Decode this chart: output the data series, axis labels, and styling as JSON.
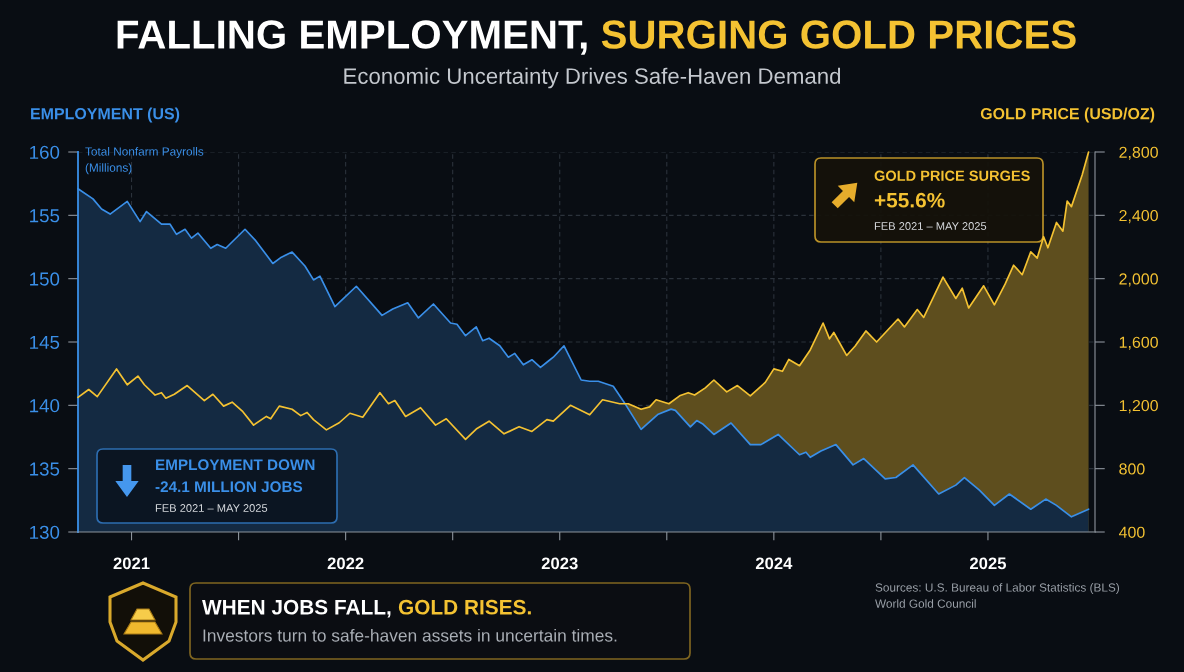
{
  "chart_data": {
    "type": "area",
    "title": "FALLING EMPLOYMENT, SURGING GOLD PRICES",
    "subtitle": "Economic Uncertainty Drives Safe-Haven Demand",
    "ylabel": "EMPLOYMENT (US)",
    "y2label": "GOLD PRICE (USD/OZ)",
    "xlim": [
      2020.75,
      2025.5
    ],
    "xticks": [
      2021,
      {
        "value": 2021.5,
        "label": null
      },
      2022,
      {
        "value": 2022.5,
        "label": null
      },
      2023,
      {
        "value": 2023.5,
        "label": null
      },
      2024,
      {
        "value": 2024.5,
        "label": null
      },
      2025
    ],
    "ylim": [
      130,
      160
    ],
    "yticks": [
      130,
      135,
      140,
      145,
      150,
      155,
      160
    ],
    "y2lim": [
      400,
      2800
    ],
    "y2ticks": [
      400,
      800,
      {
        "value": 1200,
        "label": "1,200"
      },
      {
        "value": 1600,
        "label": "1,600"
      },
      {
        "value": 2000,
        "label": "2,000"
      },
      {
        "value": 2400,
        "label": "2,400"
      },
      {
        "value": 2800,
        "label": "2,800"
      }
    ],
    "grid": true,
    "series": [
      {
        "color": "#3a8fe8",
        "axis": "y",
        "x": [
          2020.75,
          2020.82,
          2020.86,
          2020.9,
          2020.98,
          2021.04,
          2021.07,
          2021.14,
          2021.18,
          2021.21,
          2021.25,
          2021.28,
          2021.31,
          2021.37,
          2021.4,
          2021.44,
          2021.53,
          2021.58,
          2021.66,
          2021.7,
          2021.75,
          2021.81,
          2021.85,
          2021.88,
          2021.95,
          2022.05,
          2022.17,
          2022.22,
          2022.29,
          2022.34,
          2022.41,
          2022.49,
          2022.52,
          2022.56,
          2022.61,
          2022.64,
          2022.67,
          2022.72,
          2022.76,
          2022.79,
          2022.83,
          2022.87,
          2022.91,
          2022.94,
          2022.97,
          2023.02,
          2023.1,
          2023.14,
          2023.18,
          2023.25,
          2023.31,
          2023.38,
          2023.46,
          2023.52,
          2023.54,
          2023.61,
          2023.64,
          2023.67,
          2023.72,
          2023.8,
          2023.89,
          2023.94,
          2024.02,
          2024.12,
          2024.15,
          2024.17,
          2024.22,
          2024.29,
          2024.37,
          2024.42,
          2024.52,
          2024.57,
          2024.65,
          2024.77,
          2024.85,
          2024.89,
          2024.96,
          2025.03,
          2025.1,
          2025.2,
          2025.27,
          2025.32,
          2025.39,
          2025.47
        ],
        "values": [
          157.1,
          156.3,
          155.5,
          155.1,
          156.1,
          154.5,
          155.3,
          154.3,
          154.3,
          153.5,
          153.9,
          153.2,
          153.6,
          152.4,
          152.7,
          152.4,
          153.9,
          153.0,
          151.2,
          151.7,
          152.1,
          151.0,
          149.9,
          150.2,
          147.8,
          149.4,
          147.1,
          147.6,
          148.1,
          146.9,
          148.0,
          146.5,
          146.4,
          145.5,
          146.2,
          145.1,
          145.3,
          144.7,
          143.8,
          144.1,
          143.2,
          143.6,
          143.0,
          143.4,
          143.8,
          144.7,
          142.0,
          141.9,
          141.9,
          141.5,
          140.0,
          138.1,
          139.3,
          139.7,
          139.6,
          138.3,
          138.8,
          138.5,
          137.7,
          138.6,
          136.9,
          136.9,
          137.7,
          136.1,
          136.3,
          135.9,
          136.4,
          136.9,
          135.3,
          135.8,
          134.2,
          134.3,
          135.3,
          133.0,
          133.7,
          134.3,
          133.3,
          132.1,
          133.0,
          131.8,
          132.6,
          132.1,
          131.2,
          131.8
        ]
      },
      {
        "color": "#f4c232",
        "axis": "y2",
        "x": [
          2020.75,
          2020.8,
          2020.84,
          2020.93,
          2020.98,
          2021.03,
          2021.06,
          2021.11,
          2021.14,
          2021.16,
          2021.2,
          2021.26,
          2021.34,
          2021.38,
          2021.43,
          2021.47,
          2021.52,
          2021.57,
          2021.63,
          2021.65,
          2021.69,
          2021.75,
          2021.79,
          2021.82,
          2021.85,
          2021.91,
          2021.97,
          2022.02,
          2022.08,
          2022.16,
          2022.2,
          2022.23,
          2022.28,
          2022.35,
          2022.42,
          2022.47,
          2022.56,
          2022.61,
          2022.67,
          2022.74,
          2022.81,
          2022.87,
          2022.94,
          2022.97,
          2023.05,
          2023.14,
          2023.2,
          2023.28,
          2023.32,
          2023.38,
          2023.42,
          2023.45,
          2023.51,
          2023.56,
          2023.6,
          2023.63,
          2023.68,
          2023.72,
          2023.78,
          2023.83,
          2023.89,
          2023.96,
          2024.0,
          2024.04,
          2024.07,
          2024.12,
          2024.17,
          2024.23,
          2024.26,
          2024.28,
          2024.34,
          2024.38,
          2024.43,
          2024.48,
          2024.58,
          2024.61,
          2024.67,
          2024.7,
          2024.79,
          2024.85,
          2024.88,
          2024.91,
          2024.98,
          2025.03,
          2025.08,
          2025.12,
          2025.16,
          2025.2,
          2025.23,
          2025.26,
          2025.28,
          2025.32,
          2025.35,
          2025.37,
          2025.39,
          2025.44,
          2025.47
        ],
        "values": [
          1250,
          1300,
          1255,
          1430,
          1330,
          1385,
          1330,
          1265,
          1280,
          1245,
          1270,
          1325,
          1230,
          1270,
          1195,
          1220,
          1160,
          1075,
          1130,
          1115,
          1195,
          1175,
          1135,
          1155,
          1110,
          1045,
          1090,
          1150,
          1125,
          1280,
          1210,
          1230,
          1130,
          1185,
          1075,
          1115,
          985,
          1050,
          1100,
          1020,
          1065,
          1035,
          1110,
          1100,
          1200,
          1140,
          1235,
          1210,
          1210,
          1175,
          1190,
          1235,
          1210,
          1260,
          1280,
          1265,
          1310,
          1360,
          1285,
          1325,
          1260,
          1345,
          1430,
          1415,
          1490,
          1450,
          1550,
          1720,
          1620,
          1660,
          1515,
          1575,
          1670,
          1600,
          1745,
          1695,
          1805,
          1755,
          2010,
          1875,
          1940,
          1815,
          1955,
          1835,
          1965,
          2085,
          2025,
          2170,
          2130,
          2265,
          2195,
          2355,
          2300,
          2490,
          2455,
          2655,
          2800
        ]
      }
    ],
    "annotations": [
      "Total Nonfarm Payrolls\n(Millions)",
      "GOLD PRICE SURGES",
      "+55.6%",
      "FEB 2021 – MAY 2025",
      "EMPLOYMENT DOWN",
      "-24.1 MILLION JOBS",
      "FEB 2021 – MAY 2025",
      "WHEN JOBS FALL, GOLD RISES.",
      "Investors turn to safe-haven assets in uncertain times.",
      "Sources: U.S. Bureau of Labor Statistics (BLS)\nWorld Gold Council"
    ]
  }
}
